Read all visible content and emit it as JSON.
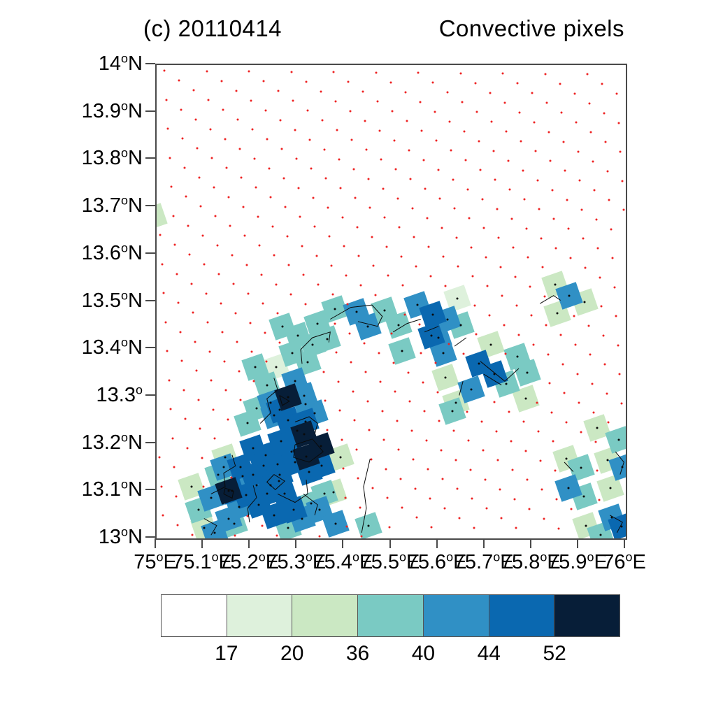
{
  "figure": {
    "panel_and_date": "(c)  20110414",
    "title_right": "Convective pixels"
  },
  "chart_data": {
    "type": "heatmap",
    "title": "(c) 20110414 Convective pixels",
    "x_axis": {
      "range": [
        75,
        76
      ],
      "ticks": [
        {
          "t": "75",
          "u": "E"
        },
        {
          "t": "75.1",
          "u": "E"
        },
        {
          "t": "75.2",
          "u": "E"
        },
        {
          "t": "75.3",
          "u": "E"
        },
        {
          "t": "75.4",
          "u": "E"
        },
        {
          "t": "75.5",
          "u": "E"
        },
        {
          "t": "75.6",
          "u": "E"
        },
        {
          "t": "75.7",
          "u": "E"
        },
        {
          "t": "75.8",
          "u": "E"
        },
        {
          "t": "75.9",
          "u": "E"
        },
        {
          "t": "76",
          "u": "E"
        }
      ]
    },
    "y_axis": {
      "range": [
        13,
        14
      ],
      "ticks": [
        {
          "t": "14",
          "u": "N"
        },
        {
          "t": "13.9",
          "u": "N"
        },
        {
          "t": "13.8",
          "u": "N"
        },
        {
          "t": "13.7",
          "u": "N"
        },
        {
          "t": "13.6",
          "u": "N"
        },
        {
          "t": "13.5",
          "u": "N"
        },
        {
          "t": "13.4",
          "u": "N"
        },
        {
          "t": "13.3",
          "u": ""
        },
        {
          "t": "13.2",
          "u": "N"
        },
        {
          "t": "13.1",
          "u": "N"
        },
        {
          "t": "13",
          "u": "N"
        }
      ]
    },
    "colorbar": {
      "levels": [
        17,
        20,
        36,
        40,
        44,
        52
      ],
      "colors": [
        "#ffffff",
        "#def1dc",
        "#cbe8c3",
        "#7acac3",
        "#3090c5",
        "#0a68b0",
        "#071e38"
      ]
    },
    "grid": {
      "dot_color": "#ee2222",
      "origin": [
        11,
        8
      ],
      "vec_a": [
        21,
        14
      ],
      "vec_b": [
        -18.5,
        27.5
      ]
    },
    "cells": [
      [
        74.994,
        13.679,
        3
      ],
      [
        75.101,
        13.022,
        3
      ],
      [
        75.075,
        13.109,
        3
      ],
      [
        75.146,
        13.171,
        3
      ],
      [
        75.392,
        13.171,
        3
      ],
      [
        75.377,
        13.097,
        3
      ],
      [
        75.712,
        13.409,
        3
      ],
      [
        75.616,
        13.339,
        3
      ],
      [
        75.787,
        13.295,
        3
      ],
      [
        75.638,
        13.287,
        3
      ],
      [
        75.849,
        13.536,
        3
      ],
      [
        75.854,
        13.476,
        3
      ],
      [
        75.912,
        13.499,
        3
      ],
      [
        75.873,
        13.168,
        3
      ],
      [
        75.961,
        13.165,
        3
      ],
      [
        75.967,
        13.106,
        3
      ],
      [
        75.915,
        13.027,
        3
      ],
      [
        75.939,
        13.234,
        3
      ],
      [
        75.255,
        13.362,
        2
      ],
      [
        75.641,
        13.507,
        2
      ],
      [
        75.131,
        13.135,
        4
      ],
      [
        75.089,
        13.061,
        4
      ],
      [
        75.165,
        13.031,
        4
      ],
      [
        75.261,
        13.121,
        4
      ],
      [
        75.28,
        13.022,
        4
      ],
      [
        75.329,
        13.074,
        4
      ],
      [
        75.452,
        13.027,
        4
      ],
      [
        75.358,
        13.094,
        4
      ],
      [
        75.213,
        13.275,
        4
      ],
      [
        75.194,
        13.243,
        4
      ],
      [
        75.235,
        13.324,
        4
      ],
      [
        75.21,
        13.362,
        4
      ],
      [
        75.268,
        13.448,
        4
      ],
      [
        75.301,
        13.429,
        4
      ],
      [
        75.332,
        13.409,
        4
      ],
      [
        75.289,
        13.391,
        4
      ],
      [
        75.322,
        13.372,
        4
      ],
      [
        75.343,
        13.454,
        4
      ],
      [
        75.364,
        13.421,
        4
      ],
      [
        75.38,
        13.484,
        4
      ],
      [
        75.486,
        13.481,
        4
      ],
      [
        75.516,
        13.451,
        4
      ],
      [
        75.648,
        13.451,
        4
      ],
      [
        75.523,
        13.396,
        4
      ],
      [
        75.745,
        13.327,
        4
      ],
      [
        75.769,
        13.384,
        4
      ],
      [
        75.63,
        13.269,
        4
      ],
      [
        75.79,
        13.35,
        4
      ],
      [
        75.905,
        13.149,
        4
      ],
      [
        75.985,
        13.208,
        4
      ],
      [
        75.911,
        13.089,
        4
      ],
      [
        75.946,
        13.007,
        4
      ],
      [
        75.124,
        13.012,
        5
      ],
      [
        75.154,
        13.042,
        5
      ],
      [
        75.176,
        13.067,
        5
      ],
      [
        75.116,
        13.086,
        5
      ],
      [
        75.143,
        13.15,
        5
      ],
      [
        75.183,
        13.131,
        5
      ],
      [
        75.213,
        13.112,
        5
      ],
      [
        75.31,
        13.042,
        5
      ],
      [
        75.347,
        13.061,
        5
      ],
      [
        75.382,
        13.031,
        5
      ],
      [
        75.243,
        13.287,
        5
      ],
      [
        75.25,
        13.26,
        5
      ],
      [
        75.317,
        13.284,
        5
      ],
      [
        75.337,
        13.265,
        5
      ],
      [
        75.314,
        13.302,
        5
      ],
      [
        75.295,
        13.332,
        5
      ],
      [
        75.426,
        13.478,
        5
      ],
      [
        75.45,
        13.448,
        5
      ],
      [
        75.556,
        13.493,
        5
      ],
      [
        75.62,
        13.463,
        5
      ],
      [
        75.671,
        13.314,
        5
      ],
      [
        75.611,
        13.391,
        5
      ],
      [
        75.601,
        13.424,
        5
      ],
      [
        75.878,
        13.107,
        5
      ],
      [
        75.97,
        13.045,
        5
      ],
      [
        75.993,
        13.15,
        5
      ],
      [
        75.879,
        13.513,
        5
      ],
      [
        75.161,
        13.101,
        6
      ],
      [
        75.191,
        13.091,
        6
      ],
      [
        75.179,
        13.15,
        6
      ],
      [
        75.206,
        13.135,
        6
      ],
      [
        75.228,
        13.153,
        6
      ],
      [
        75.235,
        13.094,
        6
      ],
      [
        75.218,
        13.071,
        6
      ],
      [
        75.243,
        13.112,
        6
      ],
      [
        75.25,
        13.049,
        6
      ],
      [
        75.206,
        13.19,
        6
      ],
      [
        75.232,
        13.176,
        6
      ],
      [
        75.258,
        13.156,
        6
      ],
      [
        75.262,
        13.135,
        6
      ],
      [
        75.273,
        13.094,
        6
      ],
      [
        75.292,
        13.061,
        6
      ],
      [
        75.265,
        13.205,
        6
      ],
      [
        75.288,
        13.183,
        6
      ],
      [
        75.295,
        13.161,
        6
      ],
      [
        75.325,
        13.141,
        6
      ],
      [
        75.352,
        13.153,
        6
      ],
      [
        75.317,
        13.246,
        6
      ],
      [
        75.28,
        13.25,
        6
      ],
      [
        75.3,
        13.228,
        6
      ],
      [
        75.262,
        13.272,
        6
      ],
      [
        75.589,
        13.473,
        6
      ],
      [
        75.586,
        13.429,
        6
      ],
      [
        75.687,
        13.369,
        6
      ],
      [
        75.72,
        13.347,
        6
      ],
      [
        75.991,
        13.025,
        6
      ],
      [
        75.154,
        13.101,
        7
      ],
      [
        75.314,
        13.22,
        7
      ],
      [
        75.35,
        13.195,
        7
      ],
      [
        75.319,
        13.173,
        7
      ],
      [
        75.28,
        13.298,
        7
      ]
    ],
    "tracks": [
      [
        [
          75.116,
          13.094
        ],
        [
          75.146,
          13.109
        ],
        [
          75.143,
          13.138
        ],
        [
          75.168,
          13.153
        ],
        [
          75.161,
          13.176
        ]
      ],
      [
        [
          75.143,
          13.094
        ],
        [
          75.161,
          13.085
        ],
        [
          75.164,
          13.1
        ],
        [
          75.146,
          13.106
        ],
        [
          75.143,
          13.094
        ]
      ],
      [
        [
          75.198,
          13.034
        ],
        [
          75.194,
          13.064
        ],
        [
          75.213,
          13.086
        ],
        [
          75.206,
          13.112
        ]
      ],
      [
        [
          75.25,
          13.135
        ],
        [
          75.273,
          13.121
        ],
        [
          75.253,
          13.103
        ],
        [
          75.235,
          13.119
        ],
        [
          75.25,
          13.135
        ]
      ],
      [
        [
          75.295,
          13.198
        ],
        [
          75.332,
          13.21
        ],
        [
          75.355,
          13.183
        ],
        [
          75.325,
          13.161
        ],
        [
          75.292,
          13.171
        ],
        [
          75.295,
          13.198
        ]
      ],
      [
        [
          75.221,
          13.243
        ],
        [
          75.243,
          13.265
        ],
        [
          75.235,
          13.295
        ],
        [
          75.258,
          13.314
        ],
        [
          75.25,
          13.339
        ]
      ],
      [
        [
          75.262,
          13.302
        ],
        [
          75.283,
          13.29
        ],
        [
          75.268,
          13.281
        ],
        [
          75.262,
          13.302
        ]
      ],
      [
        [
          75.295,
          13.246
        ],
        [
          75.325,
          13.257
        ],
        [
          75.343,
          13.243
        ],
        [
          75.337,
          13.22
        ]
      ],
      [
        [
          75.31,
          13.369
        ],
        [
          75.307,
          13.399
        ],
        [
          75.332,
          13.424
        ],
        [
          75.37,
          13.436
        ],
        [
          75.367,
          13.414
        ]
      ],
      [
        [
          75.37,
          13.463
        ],
        [
          75.414,
          13.488
        ],
        [
          75.459,
          13.493
        ],
        [
          75.481,
          13.469
        ],
        [
          75.471,
          13.448
        ],
        [
          75.429,
          13.458
        ]
      ],
      [
        [
          75.504,
          13.436
        ],
        [
          75.534,
          13.454
        ],
        [
          75.563,
          13.463
        ]
      ],
      [
        [
          75.571,
          13.436
        ],
        [
          75.601,
          13.448
        ]
      ],
      [
        [
          75.635,
          13.406
        ],
        [
          75.66,
          13.424
        ]
      ],
      [
        [
          75.69,
          13.374
        ],
        [
          75.742,
          13.332
        ],
        [
          75.772,
          13.359
        ]
      ],
      [
        [
          75.697,
          13.347
        ],
        [
          75.735,
          13.324
        ]
      ],
      [
        [
          75.653,
          13.332
        ],
        [
          75.645,
          13.302
        ]
      ],
      [
        [
          75.817,
          13.496
        ],
        [
          75.846,
          13.513
        ],
        [
          75.861,
          13.503
        ]
      ],
      [
        [
          75.978,
          13.183
        ],
        [
          75.996,
          13.161
        ],
        [
          75.988,
          13.135
        ]
      ],
      [
        [
          75.966,
          13.049
        ],
        [
          75.993,
          13.034
        ],
        [
          75.981,
          13.012
        ]
      ],
      [
        [
          75.869,
          13.161
        ],
        [
          75.888,
          13.141
        ]
      ],
      [
        [
          75.313,
          13.094
        ],
        [
          75.343,
          13.071
        ],
        [
          75.337,
          13.049
        ]
      ],
      [
        [
          75.101,
          13.042
        ],
        [
          75.128,
          13.027
        ],
        [
          75.116,
          13.007
        ]
      ],
      [
        [
          75.455,
          13.168
        ],
        [
          75.441,
          13.109
        ],
        [
          75.447,
          13.064
        ],
        [
          75.437,
          13.012
        ]
      ],
      [
        [
          75.258,
          13.094
        ],
        [
          75.295,
          13.076
        ],
        [
          75.322,
          13.094
        ],
        [
          75.319,
          13.124
        ]
      ]
    ]
  }
}
